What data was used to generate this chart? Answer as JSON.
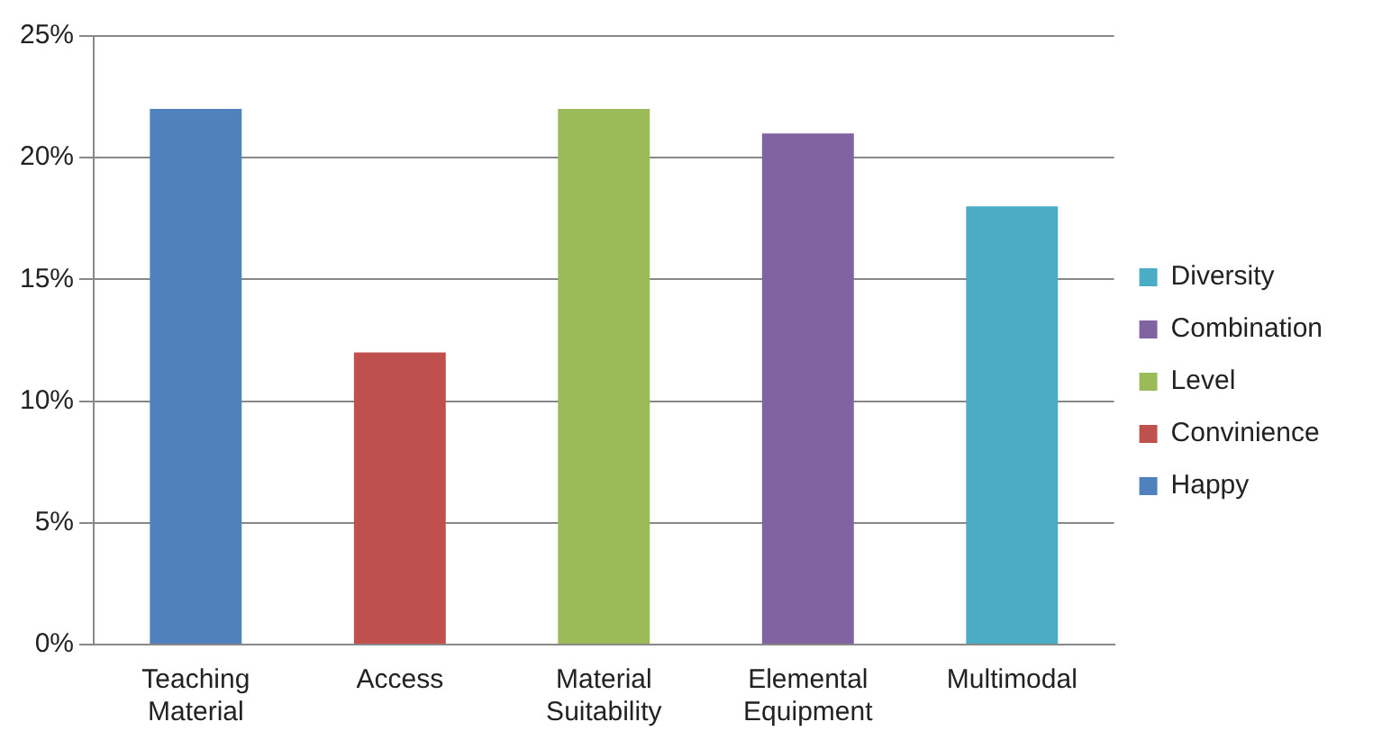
{
  "chart_data": {
    "type": "bar",
    "categories": [
      "Teaching Material",
      "Access",
      "Material Suitability",
      "Elemental Equipment",
      "Multimodal"
    ],
    "series": [
      {
        "name": "Diversity",
        "color": "#4bacc6",
        "values": [
          null,
          null,
          null,
          null,
          18
        ]
      },
      {
        "name": "Combination",
        "color": "#8064a2",
        "values": [
          null,
          null,
          null,
          21,
          null
        ]
      },
      {
        "name": "Level",
        "color": "#9bbb59",
        "values": [
          null,
          null,
          22,
          null,
          null
        ]
      },
      {
        "name": "Convinience",
        "color": "#c0504d",
        "values": [
          null,
          12,
          null,
          null,
          null
        ]
      },
      {
        "name": "Happy",
        "color": "#4f81bd",
        "values": [
          22,
          null,
          null,
          null,
          null
        ]
      }
    ],
    "ylim": [
      0,
      25
    ],
    "yticks": [
      {
        "value": 0,
        "label": "0%"
      },
      {
        "value": 5,
        "label": "5%"
      },
      {
        "value": 10,
        "label": "10%"
      },
      {
        "value": 15,
        "label": "15%"
      },
      {
        "value": 20,
        "label": "20%"
      },
      {
        "value": 25,
        "label": "25%"
      }
    ],
    "grid": "y",
    "legend": "right"
  }
}
